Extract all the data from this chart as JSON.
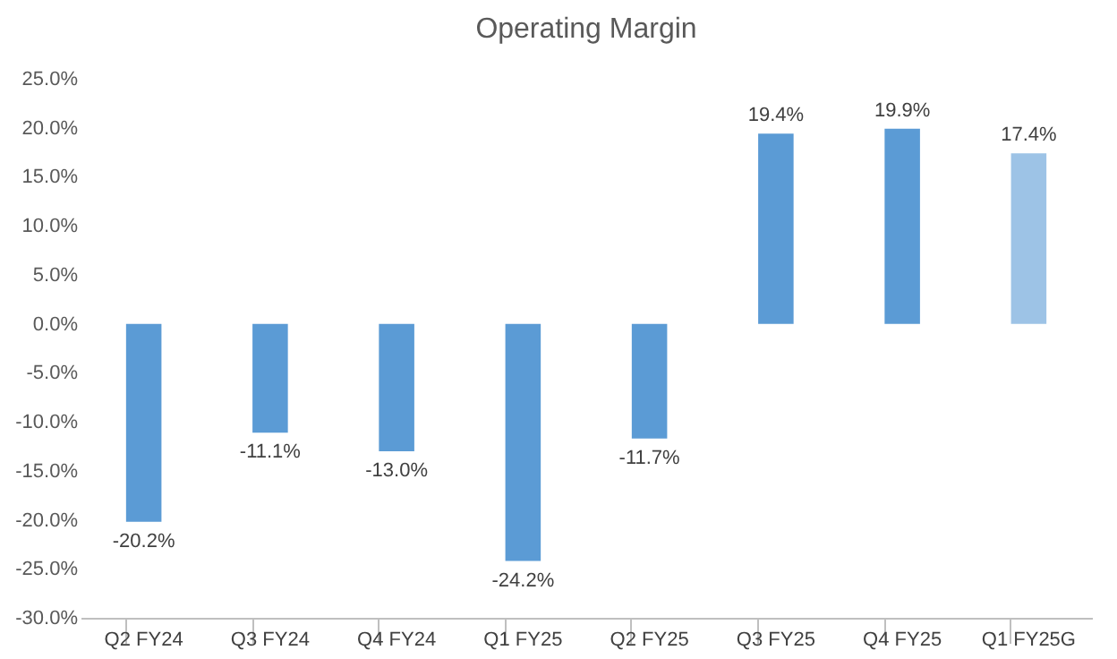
{
  "chart_data": {
    "type": "bar",
    "title": "Operating Margin",
    "categories": [
      "Q2 FY24",
      "Q3 FY24",
      "Q4 FY24",
      "Q1 FY25",
      "Q2 FY25",
      "Q3 FY25",
      "Q4 FY25",
      "Q1 FY25G"
    ],
    "values": [
      -20.2,
      -11.1,
      -13.0,
      -24.2,
      -11.7,
      19.4,
      19.9,
      17.4
    ],
    "colors": [
      "#5b9bd5",
      "#5b9bd5",
      "#5b9bd5",
      "#5b9bd5",
      "#5b9bd5",
      "#5b9bd5",
      "#5b9bd5",
      "#9dc3e6"
    ],
    "value_labels": [
      "-20.2%",
      "-11.1%",
      "-13.0%",
      "-24.2%",
      "-11.7%",
      "19.4%",
      "19.9%",
      "17.4%"
    ],
    "ylim": [
      -30,
      25
    ],
    "yticks": [
      {
        "value": -30,
        "label": "-30.0%"
      },
      {
        "value": -25,
        "label": "-25.0%"
      },
      {
        "value": -20,
        "label": "-20.0%"
      },
      {
        "value": -15,
        "label": "-15.0%"
      },
      {
        "value": -10,
        "label": "-10.0%"
      },
      {
        "value": -5,
        "label": "-5.0%"
      },
      {
        "value": 0,
        "label": "0.0%"
      },
      {
        "value": 5,
        "label": "5.0%"
      },
      {
        "value": 10,
        "label": "10.0%"
      },
      {
        "value": 15,
        "label": "15.0%"
      },
      {
        "value": 20,
        "label": "20.0%"
      },
      {
        "value": 25,
        "label": "25.0%"
      }
    ],
    "grid": false
  }
}
